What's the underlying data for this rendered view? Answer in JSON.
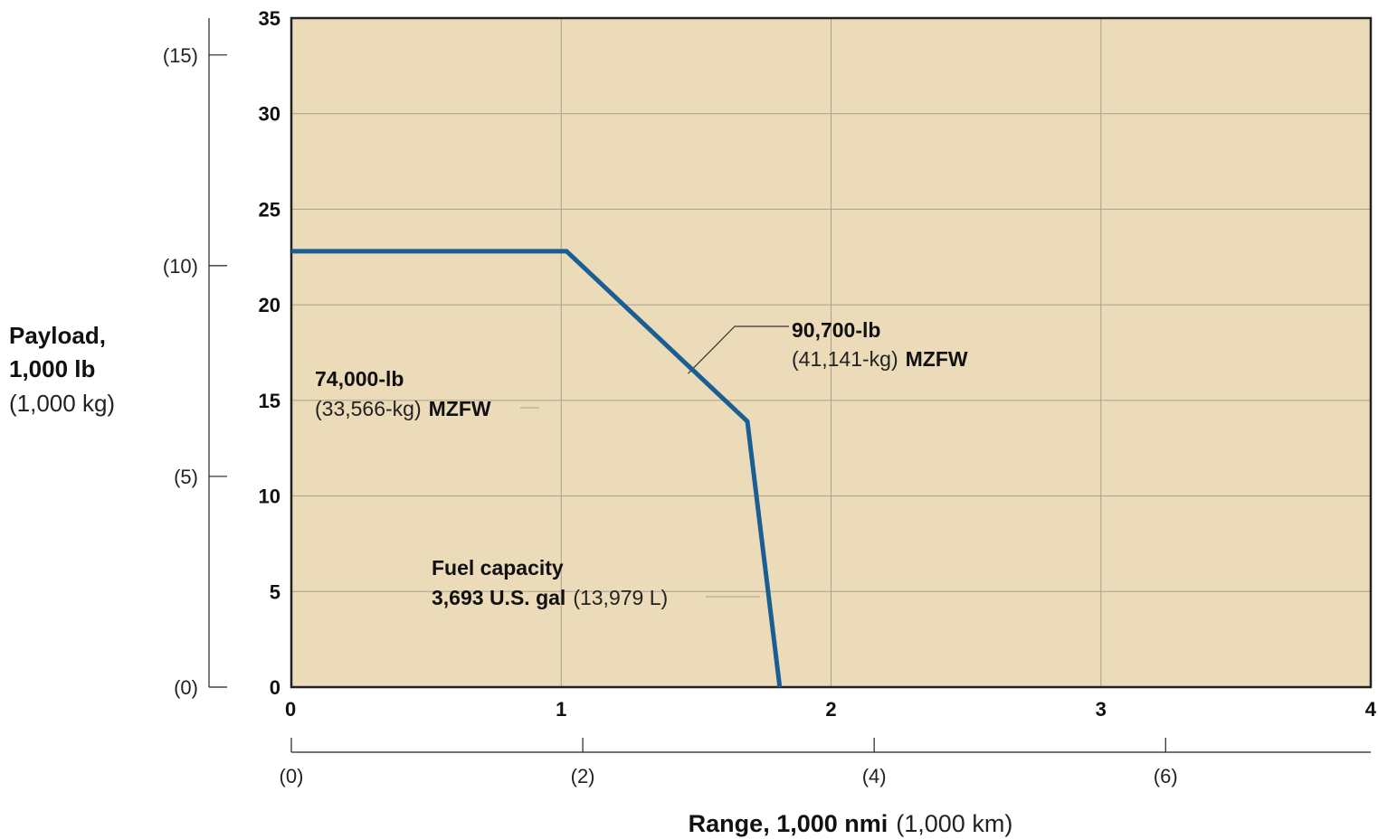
{
  "chart_data": {
    "type": "line",
    "x": [
      0,
      1.02,
      1.69,
      1.81
    ],
    "y": [
      22.8,
      22.8,
      13.9,
      0
    ],
    "xlim": [
      0,
      4
    ],
    "ylim": [
      0,
      35
    ],
    "grid": true,
    "xticks": [
      "0",
      "1",
      "2",
      "3",
      "4"
    ],
    "yticks": [
      "0",
      "5",
      "10",
      "15",
      "20",
      "25",
      "30",
      "35"
    ],
    "secondary_x_ticks": [
      {
        "label": "(0)",
        "km": 0
      },
      {
        "label": "(2)",
        "km": 2
      },
      {
        "label": "(4)",
        "km": 4
      },
      {
        "label": "(6)",
        "km": 6
      }
    ],
    "secondary_y_ticks": [
      {
        "label": "(0)",
        "kg": 0
      },
      {
        "label": "(5)",
        "kg": 5
      },
      {
        "label": "(10)",
        "kg": 10
      },
      {
        "label": "(15)",
        "kg": 15
      }
    ],
    "ylabel": {
      "line1": "Payload,",
      "line2": "1,000 lb",
      "line3": "(1,000 kg)"
    },
    "xlabel": {
      "bold": "Range, 1,000 nmi",
      "normal": "(1,000 km)"
    },
    "annotations": [
      {
        "id": "mzfw74",
        "bold_line": "74,000-lb",
        "normal_part": "(33,566-kg)",
        "bold_part": "MZFW"
      },
      {
        "id": "mzfw90",
        "bold_line": "90,700-lb",
        "normal_part": "(41,141-kg)",
        "bold_part": "MZFW"
      },
      {
        "id": "fuel",
        "bold_line": "Fuel capacity",
        "bold_part": "3,693 U.S. gal",
        "normal_part": "(13,979 L)"
      }
    ],
    "colors": {
      "plot_bg": "#ecdbb9",
      "line": "#1a5f93",
      "grid": "#a8a08f",
      "axis": "#222222"
    }
  }
}
